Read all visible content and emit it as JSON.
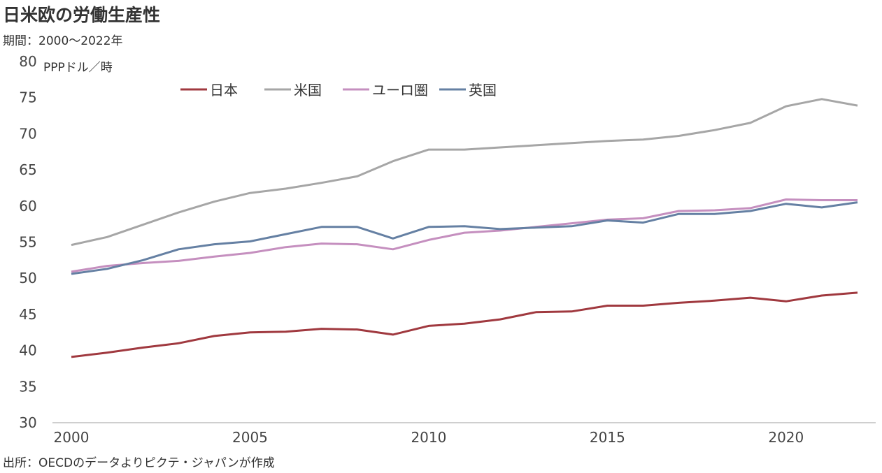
{
  "title": "日米欧の労働生産性",
  "subtitle": "期間：2000～2022年",
  "source": "出所：OECDのデータよりピクテ・ジャパンが作成",
  "chart_data": {
    "type": "line",
    "title": "日米欧の労働生産性",
    "ylabel": "PPPドル／時",
    "xlabel": "",
    "ylim": [
      30,
      80
    ],
    "yticks": [
      30,
      35,
      40,
      45,
      50,
      55,
      60,
      65,
      70,
      75,
      80
    ],
    "xticks": [
      2000,
      2005,
      2010,
      2015,
      2020
    ],
    "xlim": [
      2000,
      2022
    ],
    "grid": false,
    "legend": "top",
    "x": [
      2000,
      2001,
      2002,
      2003,
      2004,
      2005,
      2006,
      2007,
      2008,
      2009,
      2010,
      2011,
      2012,
      2013,
      2014,
      2015,
      2016,
      2017,
      2018,
      2019,
      2020,
      2021,
      2022
    ],
    "series": [
      {
        "name": "日本",
        "color": "#a0393f",
        "values": [
          39.1,
          39.7,
          40.4,
          41.0,
          42.0,
          42.5,
          42.6,
          43.0,
          42.9,
          42.2,
          43.4,
          43.7,
          44.3,
          45.3,
          45.4,
          46.2,
          46.2,
          46.6,
          46.9,
          47.3,
          46.8,
          47.6,
          48.0
        ]
      },
      {
        "name": "米国",
        "color": "#a6a6a6",
        "values": [
          54.6,
          55.7,
          57.4,
          59.1,
          60.6,
          61.8,
          62.4,
          63.2,
          64.1,
          66.2,
          67.8,
          67.8,
          68.1,
          68.4,
          68.7,
          69.0,
          69.2,
          69.7,
          70.5,
          71.5,
          73.8,
          74.8,
          73.9
        ]
      },
      {
        "name": "ユーロ圏",
        "color": "#c58fbf",
        "values": [
          50.9,
          51.7,
          52.1,
          52.4,
          53.0,
          53.5,
          54.3,
          54.8,
          54.7,
          54.0,
          55.3,
          56.3,
          56.6,
          57.1,
          57.6,
          58.1,
          58.3,
          59.3,
          59.4,
          59.7,
          60.9,
          60.8,
          60.8
        ]
      },
      {
        "name": "英国",
        "color": "#6580a3",
        "values": [
          50.6,
          51.3,
          52.5,
          54.0,
          54.7,
          55.1,
          56.1,
          57.1,
          57.1,
          55.5,
          57.1,
          57.2,
          56.8,
          57.0,
          57.2,
          58.0,
          57.7,
          58.9,
          58.9,
          59.3,
          60.3,
          59.8,
          60.5
        ]
      }
    ]
  }
}
